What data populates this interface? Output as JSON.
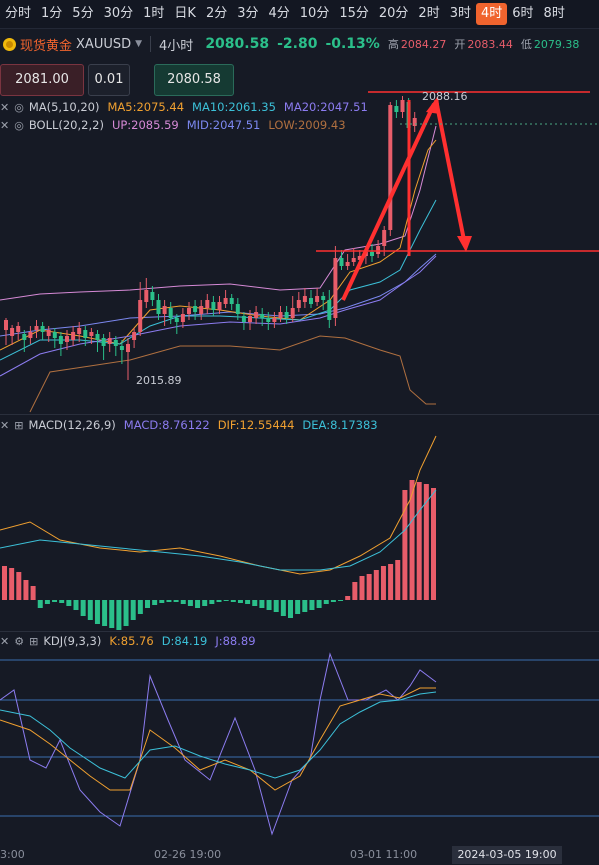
{
  "timeframes": [
    "分时",
    "1分",
    "5分",
    "30分",
    "1时",
    "日K",
    "2分",
    "3分",
    "4分",
    "10分",
    "15分",
    "20分",
    "2时",
    "3时",
    "4时",
    "6时",
    "8时"
  ],
  "active_timeframe_index": 14,
  "symbol": {
    "name": "现货黄金",
    "code": "XAUUSD",
    "interval": "4小时",
    "last_price": "2080.58",
    "change": "-2.80",
    "change_pct": "-0.13%",
    "high_label": "高",
    "high": "2084.27",
    "open_label": "开",
    "open": "2083.44",
    "low_label": "低",
    "low": "2079.38"
  },
  "order": {
    "sell_price": "2081.00",
    "quantity": "0.01",
    "buy_price": "2080.58"
  },
  "ma_legend": {
    "name": "MA(5,10,20)",
    "ma5": "MA5:2075.44",
    "ma10": "MA10:2061.35",
    "ma20": "MA20:2047.51"
  },
  "boll_legend": {
    "name": "BOLL(20,2,2)",
    "up": "UP:2085.59",
    "mid": "MID:2047.51",
    "low": "LOW:2009.43"
  },
  "macd_legend": {
    "name": "MACD(12,26,9)",
    "macd": "MACD:8.76122",
    "dif": "DIF:12.55444",
    "dea": "DEA:8.17383"
  },
  "kdj_legend": {
    "name": "KDJ(9,3,3)",
    "k": "K:85.76",
    "d": "D:84.19",
    "j": "J:88.89"
  },
  "annotations": {
    "high_marker": "2088.16",
    "low_marker": "2015.89"
  },
  "time_axis": {
    "labels": [
      "3:00",
      "02-26 19:00",
      "03-01 11:00"
    ],
    "current": "2024-03-05 19:00"
  },
  "colors": {
    "up": "#e85d6a",
    "down": "#2bbf8a",
    "ma5": "#f0a030",
    "ma10": "#3cc0d8",
    "ma20": "#8c7cf0",
    "boll_up": "#d68ad6",
    "boll_mid": "#7c88f0",
    "boll_low": "#b07040",
    "drawing": "#ff3030"
  },
  "icons": [
    "close-icon",
    "eye-icon",
    "plus-box-icon",
    "settings-icon",
    "caret-down-icon",
    "gold-coin-icon"
  ]
}
